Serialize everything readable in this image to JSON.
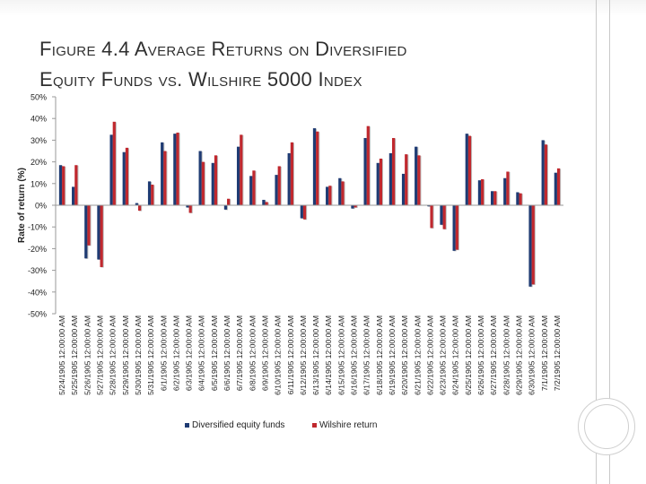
{
  "slide": {
    "title_line1": "Figure 4.4 Average Returns on Diversified",
    "title_line2": "Equity Funds vs. Wilshire 5000 Index"
  },
  "chart_data": {
    "type": "bar",
    "title": "",
    "xlabel": "",
    "ylabel": "Rate of return (%)",
    "ylim": [
      -50,
      50
    ],
    "yticks": [
      50,
      40,
      30,
      20,
      10,
      0,
      -10,
      -20,
      -30,
      -40,
      -50
    ],
    "ytick_labels": [
      "50%",
      "40%",
      "30%",
      "20%",
      "10%",
      "0%",
      "-10%",
      "-20%",
      "-30%",
      "-40%",
      "-50%"
    ],
    "grid": false,
    "legend_position": "bottom",
    "categories": [
      "5/24/1905 12:00:00 AM",
      "5/25/1905 12:00:00 AM",
      "5/26/1905 12:00:00 AM",
      "5/27/1905 12:00:00 AM",
      "5/28/1905 12:00:00 AM",
      "5/29/1905 12:00:00 AM",
      "5/30/1905 12:00:00 AM",
      "5/31/1905 12:00:00 AM",
      "6/1/1905 12:00:00 AM",
      "6/2/1905 12:00:00 AM",
      "6/3/1905 12:00:00 AM",
      "6/4/1905 12:00:00 AM",
      "6/5/1905 12:00:00 AM",
      "6/6/1905 12:00:00 AM",
      "6/7/1905 12:00:00 AM",
      "6/8/1905 12:00:00 AM",
      "6/9/1905 12:00:00 AM",
      "6/10/1905 12:00:00 AM",
      "6/11/1905 12:00:00 AM",
      "6/12/1905 12:00:00 AM",
      "6/13/1905 12:00:00 AM",
      "6/14/1905 12:00:00 AM",
      "6/15/1905 12:00:00 AM",
      "6/16/1905 12:00:00 AM",
      "6/17/1905 12:00:00 AM",
      "6/18/1905 12:00:00 AM",
      "6/19/1905 12:00:00 AM",
      "6/20/1905 12:00:00 AM",
      "6/21/1905 12:00:00 AM",
      "6/22/1905 12:00:00 AM",
      "6/23/1905 12:00:00 AM",
      "6/24/1905 12:00:00 AM",
      "6/25/1905 12:00:00 AM",
      "6/26/1905 12:00:00 AM",
      "6/27/1905 12:00:00 AM",
      "6/28/1905 12:00:00 AM",
      "6/29/1905 12:00:00 AM",
      "6/30/1905 12:00:00 AM",
      "7/1/1905 12:00:00 AM",
      "7/2/1905 12:00:00 AM"
    ],
    "series": [
      {
        "name": "Diversified equity funds",
        "color": "#1f3b73",
        "values": [
          18.5,
          8.5,
          -24.5,
          -25,
          32.5,
          24.5,
          1,
          11,
          29,
          33,
          -1,
          25,
          19.5,
          -2,
          27,
          13.5,
          2.5,
          14,
          24,
          -6,
          35.5,
          8.5,
          12.5,
          -1.5,
          31,
          19.5,
          24,
          14.5,
          27,
          -0.5,
          -9,
          -21,
          33,
          11.5,
          6.5,
          12.5,
          6,
          -37.5,
          30,
          15
        ]
      },
      {
        "name": "Wilshire return",
        "color": "#c0282e",
        "values": [
          18,
          18.5,
          -18.5,
          -28.5,
          38.5,
          26.5,
          -2.5,
          9.5,
          25,
          33.5,
          -3.5,
          20,
          23,
          3,
          32.5,
          16,
          1.5,
          18,
          29,
          -6.5,
          34,
          9,
          11,
          -1,
          36.5,
          21.5,
          31,
          23.5,
          23,
          -10.5,
          -11,
          -20.5,
          32,
          12,
          6.5,
          15.5,
          5.5,
          -36.5,
          28,
          17
        ]
      }
    ]
  }
}
